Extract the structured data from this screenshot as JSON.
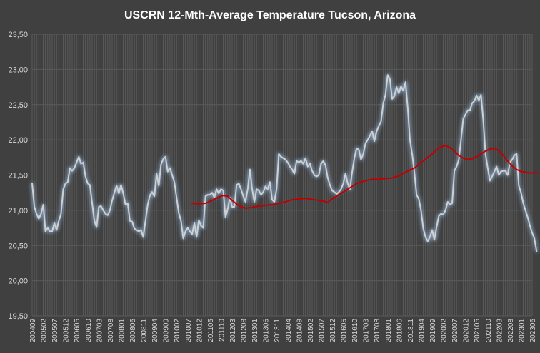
{
  "chart_data": {
    "type": "line",
    "title": "USCRN 12-Mth-Average Temperature Tucson, Arizona",
    "xlabel": "",
    "ylabel": "",
    "ylim": [
      19.5,
      23.5
    ],
    "y_ticks": [
      "19,50",
      "20,00",
      "20,50",
      "21,00",
      "21,50",
      "22,00",
      "22,50",
      "23,00",
      "23,50"
    ],
    "x_tick_labels": [
      "200409",
      "200502",
      "200507",
      "200512",
      "200605",
      "200610",
      "200703",
      "200708",
      "200801",
      "200806",
      "200811",
      "200904",
      "200909",
      "201002",
      "201007",
      "201012",
      "201105",
      "201110",
      "201203",
      "201208",
      "201301",
      "201306",
      "201311",
      "201404",
      "201409",
      "201502",
      "201507",
      "201512",
      "201605",
      "201610",
      "201703",
      "201708",
      "201801",
      "201806",
      "201811",
      "201904",
      "201909",
      "202002",
      "202007",
      "202012",
      "202105",
      "202110",
      "202203",
      "202208",
      "202301",
      "202306"
    ],
    "grid": true,
    "legend": "none",
    "series": [
      {
        "color": "#d0d0d0",
        "glow_color": "#8fb4dc",
        "points": [
          [
            0,
            21.38
          ],
          [
            1,
            21.05
          ],
          [
            2,
            20.95
          ],
          [
            3,
            20.88
          ],
          [
            4,
            20.95
          ],
          [
            5,
            21.08
          ],
          [
            6,
            20.7
          ],
          [
            7,
            20.75
          ],
          [
            8,
            20.7
          ],
          [
            9,
            20.7
          ],
          [
            10,
            20.82
          ],
          [
            11,
            20.72
          ],
          [
            12,
            20.85
          ],
          [
            13,
            20.95
          ],
          [
            14,
            21.3
          ],
          [
            15,
            21.38
          ],
          [
            16,
            21.4
          ],
          [
            17,
            21.6
          ],
          [
            18,
            21.56
          ],
          [
            19,
            21.6
          ],
          [
            20,
            21.68
          ],
          [
            21,
            21.76
          ],
          [
            22,
            21.66
          ],
          [
            23,
            21.68
          ],
          [
            24,
            21.48
          ],
          [
            25,
            21.38
          ],
          [
            26,
            21.36
          ],
          [
            27,
            21.1
          ],
          [
            28,
            20.85
          ],
          [
            29,
            20.76
          ],
          [
            30,
            21.05
          ],
          [
            31,
            21.06
          ],
          [
            32,
            21.0
          ],
          [
            33,
            20.95
          ],
          [
            34,
            20.93
          ],
          [
            35,
            21.0
          ],
          [
            36,
            21.14
          ],
          [
            37,
            21.25
          ],
          [
            38,
            21.35
          ],
          [
            39,
            21.24
          ],
          [
            40,
            21.36
          ],
          [
            41,
            21.24
          ],
          [
            42,
            21.08
          ],
          [
            43,
            21.1
          ],
          [
            44,
            20.85
          ],
          [
            45,
            20.84
          ],
          [
            46,
            20.74
          ],
          [
            47,
            20.72
          ],
          [
            48,
            20.7
          ],
          [
            49,
            20.72
          ],
          [
            50,
            20.62
          ],
          [
            51,
            20.85
          ],
          [
            52,
            21.08
          ],
          [
            53,
            21.21
          ],
          [
            54,
            21.26
          ],
          [
            55,
            21.2
          ],
          [
            56,
            21.52
          ],
          [
            57,
            21.35
          ],
          [
            58,
            21.65
          ],
          [
            59,
            21.73
          ],
          [
            60,
            21.76
          ],
          [
            61,
            21.55
          ],
          [
            62,
            21.6
          ],
          [
            63,
            21.5
          ],
          [
            64,
            21.4
          ],
          [
            65,
            21.18
          ],
          [
            66,
            20.96
          ],
          [
            67,
            20.85
          ],
          [
            68,
            20.6
          ],
          [
            69,
            20.7
          ],
          [
            70,
            20.75
          ],
          [
            71,
            20.7
          ],
          [
            72,
            20.66
          ],
          [
            73,
            20.82
          ],
          [
            74,
            20.62
          ],
          [
            75,
            20.86
          ],
          [
            76,
            20.78
          ],
          [
            77,
            20.75
          ],
          [
            78,
            21.2
          ],
          [
            79,
            21.22
          ],
          [
            80,
            21.22
          ],
          [
            81,
            21.25
          ],
          [
            82,
            21.18
          ],
          [
            83,
            21.3
          ],
          [
            84,
            21.24
          ],
          [
            85,
            21.3
          ],
          [
            86,
            21.28
          ],
          [
            87,
            20.9
          ],
          [
            88,
            21.02
          ],
          [
            89,
            21.18
          ],
          [
            90,
            21.05
          ],
          [
            91,
            21.05
          ],
          [
            92,
            21.36
          ],
          [
            93,
            21.38
          ],
          [
            94,
            21.3
          ],
          [
            95,
            21.2
          ],
          [
            96,
            21.12
          ],
          [
            97,
            21.3
          ],
          [
            98,
            21.58
          ],
          [
            99,
            21.3
          ],
          [
            100,
            21.12
          ],
          [
            101,
            21.3
          ],
          [
            102,
            21.28
          ],
          [
            103,
            21.22
          ],
          [
            104,
            21.26
          ],
          [
            105,
            21.34
          ],
          [
            106,
            21.3
          ],
          [
            107,
            21.4
          ],
          [
            108,
            21.15
          ],
          [
            109,
            21.12
          ],
          [
            110,
            21.3
          ],
          [
            111,
            21.8
          ],
          [
            112,
            21.76
          ],
          [
            113,
            21.74
          ],
          [
            114,
            21.72
          ],
          [
            115,
            21.68
          ],
          [
            116,
            21.62
          ],
          [
            117,
            21.58
          ],
          [
            118,
            21.52
          ],
          [
            119,
            21.7
          ],
          [
            120,
            21.68
          ],
          [
            121,
            21.7
          ],
          [
            122,
            21.66
          ],
          [
            123,
            21.74
          ],
          [
            124,
            21.62
          ],
          [
            125,
            21.66
          ],
          [
            126,
            21.56
          ],
          [
            127,
            21.5
          ],
          [
            128,
            21.48
          ],
          [
            129,
            21.5
          ],
          [
            130,
            21.66
          ],
          [
            131,
            21.7
          ],
          [
            132,
            21.64
          ],
          [
            133,
            21.46
          ],
          [
            134,
            21.36
          ],
          [
            135,
            21.28
          ],
          [
            136,
            21.26
          ],
          [
            137,
            21.23
          ],
          [
            138,
            21.26
          ],
          [
            139,
            21.3
          ],
          [
            140,
            21.38
          ],
          [
            141,
            21.52
          ],
          [
            142,
            21.38
          ],
          [
            143,
            21.3
          ],
          [
            144,
            21.54
          ],
          [
            145,
            21.74
          ],
          [
            146,
            21.88
          ],
          [
            147,
            21.86
          ],
          [
            148,
            21.72
          ],
          [
            149,
            21.8
          ],
          [
            150,
            21.95
          ],
          [
            151,
            22.0
          ],
          [
            152,
            22.06
          ],
          [
            153,
            22.12
          ],
          [
            154,
            21.98
          ],
          [
            155,
            22.12
          ],
          [
            156,
            22.2
          ],
          [
            157,
            22.26
          ],
          [
            158,
            22.52
          ],
          [
            159,
            22.64
          ],
          [
            160,
            22.92
          ],
          [
            161,
            22.86
          ],
          [
            162,
            22.58
          ],
          [
            163,
            22.62
          ],
          [
            164,
            22.75
          ],
          [
            165,
            22.66
          ],
          [
            166,
            22.76
          ],
          [
            167,
            22.7
          ],
          [
            168,
            22.82
          ],
          [
            169,
            22.46
          ],
          [
            170,
            22.0
          ],
          [
            171,
            21.8
          ],
          [
            172,
            21.54
          ],
          [
            173,
            21.22
          ],
          [
            174,
            21.16
          ],
          [
            175,
            21.0
          ],
          [
            176,
            20.74
          ],
          [
            177,
            20.62
          ],
          [
            178,
            20.56
          ],
          [
            179,
            20.62
          ],
          [
            180,
            20.72
          ],
          [
            181,
            20.58
          ],
          [
            182,
            20.76
          ],
          [
            183,
            20.92
          ],
          [
            184,
            20.95
          ],
          [
            185,
            20.94
          ],
          [
            186,
            21.0
          ],
          [
            187,
            21.12
          ],
          [
            188,
            21.08
          ],
          [
            189,
            21.1
          ],
          [
            190,
            21.56
          ],
          [
            191,
            21.62
          ],
          [
            192,
            21.72
          ],
          [
            193,
            22.0
          ],
          [
            194,
            22.3
          ],
          [
            195,
            22.36
          ],
          [
            196,
            22.42
          ],
          [
            197,
            22.42
          ],
          [
            198,
            22.52
          ],
          [
            199,
            22.55
          ],
          [
            200,
            22.63
          ],
          [
            201,
            22.56
          ],
          [
            202,
            22.64
          ],
          [
            203,
            22.28
          ],
          [
            204,
            21.8
          ],
          [
            205,
            21.6
          ],
          [
            206,
            21.42
          ],
          [
            207,
            21.48
          ],
          [
            208,
            21.55
          ],
          [
            209,
            21.62
          ],
          [
            210,
            21.5
          ],
          [
            211,
            21.55
          ],
          [
            212,
            21.56
          ],
          [
            213,
            21.56
          ],
          [
            214,
            21.5
          ],
          [
            215,
            21.68
          ],
          [
            216,
            21.72
          ],
          [
            217,
            21.78
          ],
          [
            218,
            21.8
          ],
          [
            219,
            21.35
          ],
          [
            220,
            21.25
          ],
          [
            221,
            21.1
          ],
          [
            222,
            21.0
          ],
          [
            223,
            20.9
          ],
          [
            224,
            20.78
          ],
          [
            225,
            20.68
          ],
          [
            226,
            20.6
          ],
          [
            227,
            20.42
          ]
        ]
      },
      {
        "color": "#c00000",
        "points": [
          [
            72,
            21.1
          ],
          [
            75,
            21.09
          ],
          [
            78,
            21.1
          ],
          [
            81,
            21.14
          ],
          [
            84,
            21.19
          ],
          [
            86,
            21.21
          ],
          [
            88,
            21.2
          ],
          [
            90,
            21.14
          ],
          [
            92,
            21.09
          ],
          [
            94,
            21.05
          ],
          [
            96,
            21.03
          ],
          [
            99,
            21.04
          ],
          [
            102,
            21.06
          ],
          [
            105,
            21.07
          ],
          [
            108,
            21.08
          ],
          [
            111,
            21.1
          ],
          [
            114,
            21.12
          ],
          [
            117,
            21.15
          ],
          [
            120,
            21.16
          ],
          [
            123,
            21.17
          ],
          [
            125,
            21.16
          ],
          [
            127,
            21.15
          ],
          [
            129,
            21.14
          ],
          [
            131,
            21.13
          ],
          [
            133,
            21.11
          ],
          [
            134,
            21.14
          ],
          [
            136,
            21.18
          ],
          [
            138,
            21.22
          ],
          [
            140,
            21.26
          ],
          [
            142,
            21.3
          ],
          [
            144,
            21.34
          ],
          [
            146,
            21.38
          ],
          [
            148,
            21.4
          ],
          [
            150,
            21.42
          ],
          [
            153,
            21.44
          ],
          [
            156,
            21.44
          ],
          [
            159,
            21.45
          ],
          [
            162,
            21.46
          ],
          [
            165,
            21.49
          ],
          [
            168,
            21.54
          ],
          [
            170,
            21.57
          ],
          [
            172,
            21.6
          ],
          [
            174,
            21.65
          ],
          [
            176,
            21.7
          ],
          [
            178,
            21.75
          ],
          [
            180,
            21.8
          ],
          [
            182,
            21.86
          ],
          [
            184,
            21.9
          ],
          [
            186,
            21.92
          ],
          [
            188,
            21.89
          ],
          [
            190,
            21.84
          ],
          [
            192,
            21.78
          ],
          [
            194,
            21.74
          ],
          [
            196,
            21.72
          ],
          [
            198,
            21.73
          ],
          [
            200,
            21.76
          ],
          [
            202,
            21.8
          ],
          [
            204,
            21.84
          ],
          [
            206,
            21.87
          ],
          [
            208,
            21.88
          ],
          [
            210,
            21.85
          ],
          [
            212,
            21.78
          ],
          [
            214,
            21.7
          ],
          [
            216,
            21.63
          ],
          [
            218,
            21.58
          ],
          [
            220,
            21.55
          ],
          [
            222,
            21.54
          ],
          [
            224,
            21.53
          ],
          [
            226,
            21.53
          ],
          [
            228,
            21.53
          ]
        ]
      }
    ]
  }
}
